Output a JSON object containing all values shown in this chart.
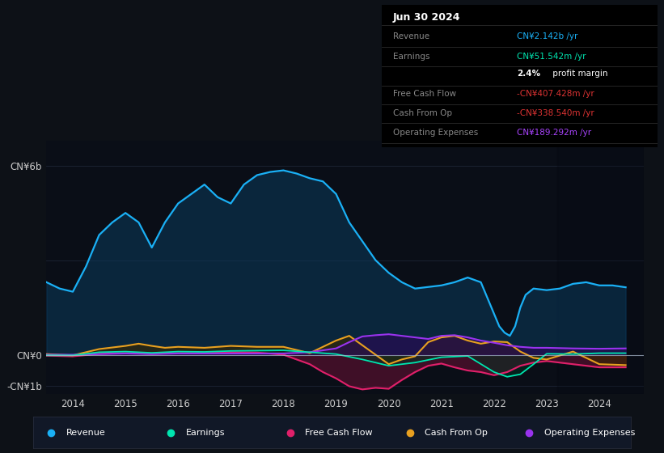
{
  "background_color": "#0d1117",
  "plot_bg_color": "#0a0e17",
  "grid_color": "#1e2535",
  "zero_line_color": "#aabbcc",
  "xlim": [
    2013.5,
    2024.85
  ],
  "ylim": [
    -1250000000.0,
    6800000000.0
  ],
  "ytick_labels": [
    "-CN¥1b",
    "CN¥0",
    "CN¥6b"
  ],
  "ytick_values": [
    -1000000000.0,
    0,
    6000000000.0
  ],
  "xticks": [
    2014,
    2015,
    2016,
    2017,
    2018,
    2019,
    2020,
    2021,
    2022,
    2023,
    2024
  ],
  "colors": {
    "revenue": "#1ab0f5",
    "earnings": "#00e5b0",
    "free_cash_flow": "#e0206a",
    "cash_from_op": "#e8a020",
    "operating_expenses": "#9933ee"
  },
  "fill_colors": {
    "revenue": "#0a3a5c",
    "earnings": "#003322",
    "free_cash_flow": "#5c1030",
    "cash_from_op": "#3a2800",
    "operating_expenses": "#2a0a55"
  },
  "revenue_x": [
    2013.5,
    2013.75,
    2014.0,
    2014.25,
    2014.5,
    2014.75,
    2015.0,
    2015.25,
    2015.5,
    2015.75,
    2016.0,
    2016.25,
    2016.5,
    2016.75,
    2017.0,
    2017.25,
    2017.5,
    2017.75,
    2018.0,
    2018.25,
    2018.5,
    2018.75,
    2019.0,
    2019.25,
    2019.5,
    2019.75,
    2020.0,
    2020.25,
    2020.5,
    2020.75,
    2021.0,
    2021.25,
    2021.5,
    2021.75,
    2022.0,
    2022.1,
    2022.2,
    2022.3,
    2022.4,
    2022.5,
    2022.6,
    2022.75,
    2023.0,
    2023.25,
    2023.5,
    2023.75,
    2024.0,
    2024.25,
    2024.5
  ],
  "revenue_y": [
    2300000000.0,
    2100000000.0,
    2000000000.0,
    2800000000.0,
    3800000000.0,
    4200000000.0,
    4500000000.0,
    4200000000.0,
    3400000000.0,
    4200000000.0,
    4800000000.0,
    5100000000.0,
    5400000000.0,
    5000000000.0,
    4800000000.0,
    5400000000.0,
    5700000000.0,
    5800000000.0,
    5850000000.0,
    5750000000.0,
    5600000000.0,
    5500000000.0,
    5100000000.0,
    4200000000.0,
    3600000000.0,
    3000000000.0,
    2600000000.0,
    2300000000.0,
    2100000000.0,
    2150000000.0,
    2200000000.0,
    2300000000.0,
    2450000000.0,
    2300000000.0,
    1300000000.0,
    900000000.0,
    700000000.0,
    600000000.0,
    900000000.0,
    1500000000.0,
    1900000000.0,
    2100000000.0,
    2050000000.0,
    2100000000.0,
    2250000000.0,
    2300000000.0,
    2200000000.0,
    2200000000.0,
    2140000000.0
  ],
  "earnings_x": [
    2013.5,
    2014.0,
    2014.5,
    2015.0,
    2015.5,
    2016.0,
    2016.5,
    2017.0,
    2017.5,
    2018.0,
    2018.5,
    2019.0,
    2019.5,
    2019.75,
    2020.0,
    2020.25,
    2020.5,
    2021.0,
    2021.5,
    2022.0,
    2022.25,
    2022.5,
    2022.75,
    2023.0,
    2023.5,
    2024.0,
    2024.5
  ],
  "earnings_y": [
    -20000000.0,
    -20000000.0,
    80000000.0,
    100000000.0,
    60000000.0,
    100000000.0,
    90000000.0,
    120000000.0,
    130000000.0,
    140000000.0,
    80000000.0,
    20000000.0,
    -150000000.0,
    -250000000.0,
    -350000000.0,
    -300000000.0,
    -250000000.0,
    -80000000.0,
    -40000000.0,
    -550000000.0,
    -700000000.0,
    -620000000.0,
    -300000000.0,
    30000000.0,
    20000000.0,
    50000000.0,
    50000000.0
  ],
  "fcf_x": [
    2013.5,
    2014.0,
    2014.5,
    2015.0,
    2015.5,
    2016.0,
    2016.5,
    2017.0,
    2017.5,
    2018.0,
    2018.25,
    2018.5,
    2018.75,
    2019.0,
    2019.25,
    2019.5,
    2019.75,
    2020.0,
    2020.25,
    2020.5,
    2020.75,
    2021.0,
    2021.25,
    2021.5,
    2021.75,
    2022.0,
    2022.25,
    2022.5,
    2022.75,
    2023.0,
    2023.25,
    2023.5,
    2023.75,
    2024.0,
    2024.5
  ],
  "fcf_y": [
    -30000000.0,
    -50000000.0,
    30000000.0,
    50000000.0,
    30000000.0,
    50000000.0,
    50000000.0,
    80000000.0,
    70000000.0,
    0.0,
    -150000000.0,
    -300000000.0,
    -550000000.0,
    -750000000.0,
    -1000000000.0,
    -1100000000.0,
    -1050000000.0,
    -1080000000.0,
    -800000000.0,
    -550000000.0,
    -350000000.0,
    -280000000.0,
    -400000000.0,
    -500000000.0,
    -550000000.0,
    -650000000.0,
    -550000000.0,
    -350000000.0,
    -250000000.0,
    -200000000.0,
    -250000000.0,
    -300000000.0,
    -350000000.0,
    -400000000.0,
    -400000000.0
  ],
  "cop_x": [
    2013.5,
    2014.0,
    2014.5,
    2015.0,
    2015.25,
    2015.5,
    2015.75,
    2016.0,
    2016.5,
    2017.0,
    2017.5,
    2018.0,
    2018.5,
    2019.0,
    2019.25,
    2019.5,
    2019.75,
    2020.0,
    2020.25,
    2020.5,
    2020.75,
    2021.0,
    2021.25,
    2021.5,
    2021.75,
    2022.0,
    2022.25,
    2022.5,
    2022.75,
    2023.0,
    2023.5,
    2024.0,
    2024.5
  ],
  "cop_y": [
    20000000.0,
    -20000000.0,
    180000000.0,
    280000000.0,
    350000000.0,
    280000000.0,
    220000000.0,
    250000000.0,
    220000000.0,
    280000000.0,
    250000000.0,
    250000000.0,
    50000000.0,
    450000000.0,
    600000000.0,
    300000000.0,
    0.0,
    -300000000.0,
    -150000000.0,
    -50000000.0,
    400000000.0,
    550000000.0,
    600000000.0,
    450000000.0,
    350000000.0,
    420000000.0,
    400000000.0,
    100000000.0,
    -100000000.0,
    -150000000.0,
    100000000.0,
    -300000000.0,
    -330000000.0
  ],
  "opex_x": [
    2013.5,
    2014.0,
    2014.5,
    2015.0,
    2015.5,
    2016.0,
    2016.5,
    2017.0,
    2017.5,
    2018.0,
    2018.5,
    2019.0,
    2019.25,
    2019.5,
    2019.75,
    2020.0,
    2020.25,
    2020.5,
    2020.75,
    2021.0,
    2021.25,
    2021.5,
    2021.75,
    2022.0,
    2022.25,
    2022.5,
    2022.75,
    2023.0,
    2023.5,
    2024.0,
    2024.5
  ],
  "opex_y": [
    0.0,
    0.0,
    20000000.0,
    40000000.0,
    20000000.0,
    40000000.0,
    40000000.0,
    40000000.0,
    40000000.0,
    40000000.0,
    80000000.0,
    200000000.0,
    400000000.0,
    580000000.0,
    620000000.0,
    650000000.0,
    600000000.0,
    550000000.0,
    500000000.0,
    600000000.0,
    620000000.0,
    550000000.0,
    450000000.0,
    380000000.0,
    300000000.0,
    250000000.0,
    220000000.0,
    220000000.0,
    200000000.0,
    190000000.0,
    200000000.0
  ],
  "info_box": {
    "date": "Jun 30 2024",
    "rows": [
      {
        "label": "Revenue",
        "value": "CN¥2.142b /yr",
        "value_color": "#1ab0f5"
      },
      {
        "label": "Earnings",
        "value": "CN¥51.542m /yr",
        "value_color": "#00e5b0"
      },
      {
        "label": "",
        "value": "2.4% profit margin",
        "value_color": "#ffffff",
        "bold_prefix": "2.4%"
      },
      {
        "label": "Free Cash Flow",
        "value": "-CN¥407.428m /yr",
        "value_color": "#dd3333"
      },
      {
        "label": "Cash From Op",
        "value": "-CN¥338.540m /yr",
        "value_color": "#dd3333"
      },
      {
        "label": "Operating Expenses",
        "value": "CN¥189.292m /yr",
        "value_color": "#aa44ff"
      }
    ]
  },
  "legend": [
    {
      "label": "Revenue",
      "color": "#1ab0f5"
    },
    {
      "label": "Earnings",
      "color": "#00e5b0"
    },
    {
      "label": "Free Cash Flow",
      "color": "#e0206a"
    },
    {
      "label": "Cash From Op",
      "color": "#e8a020"
    },
    {
      "label": "Operating Expenses",
      "color": "#9933ee"
    }
  ]
}
